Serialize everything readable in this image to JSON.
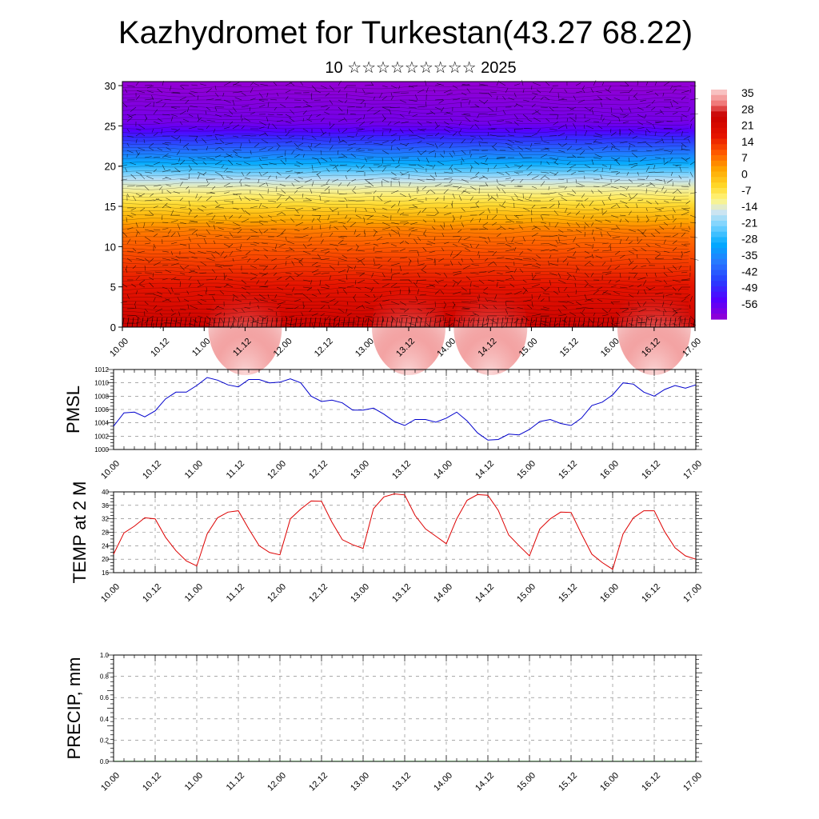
{
  "title": "Kazhydromet for Turkestan(43.27 68.22)",
  "subtitle": "10 ☆☆☆☆☆☆☆☆☆ 2025",
  "time_labels": [
    "10.00",
    "10.12",
    "11.00",
    "11.12",
    "12.00",
    "12.12",
    "13.00",
    "13.12",
    "14.00",
    "14.12",
    "15.00",
    "15.12",
    "16.00",
    "16.12",
    "17.00"
  ],
  "colors": {
    "pmsl_line": "#0000cc",
    "temp_line": "#dd0000",
    "grid": "#888888"
  },
  "chart_data": [
    {
      "type": "heatmap",
      "name": "vertical-cross-section",
      "x_ticks": [
        "10.00",
        "10.12",
        "11.00",
        "11.12",
        "12.00",
        "12.12",
        "13.00",
        "13.12",
        "14.00",
        "14.12",
        "15.00",
        "15.12",
        "16.00",
        "16.12",
        "17.00"
      ],
      "y_ticks": [
        "0",
        "5",
        "10",
        "15",
        "20",
        "25",
        "30"
      ],
      "ylim": [
        0,
        30.5
      ],
      "colorbar_labels": [
        "35",
        "28",
        "21",
        "14",
        "7",
        "0",
        "-7",
        "-14",
        "-21",
        "-28",
        "-35",
        "-42",
        "-49",
        "-56"
      ],
      "colorbar_range": [
        -60,
        38
      ],
      "warm_cores_day_index": [
        1.5,
        3.5,
        4.5,
        6.5
      ],
      "wind_barbs": true
    },
    {
      "type": "line",
      "name": "PMSL",
      "ylabel": "PMSL",
      "ylim": [
        1000,
        1012
      ],
      "y_ticks": [
        "1012",
        "1010",
        "1008",
        "1006",
        "1004",
        "1002",
        "1000"
      ],
      "x_ticks": [
        "10.00",
        "10.12",
        "11.00",
        "11.12",
        "12.00",
        "12.12",
        "13.00",
        "13.12",
        "14.00",
        "14.12",
        "15.00",
        "15.12",
        "16.00",
        "16.12",
        "17.00"
      ],
      "x_hours": [
        0,
        3,
        6,
        9,
        12,
        15,
        18,
        21,
        24,
        27,
        30,
        33,
        36,
        39,
        42,
        45,
        48,
        51,
        54,
        57,
        60,
        63,
        66,
        69,
        72,
        75,
        78,
        81,
        84,
        87,
        90,
        93,
        96,
        99,
        102,
        105,
        108,
        111,
        114,
        117,
        120,
        123,
        126,
        129,
        132,
        135,
        138,
        141,
        144,
        147,
        150,
        153,
        156,
        159,
        162,
        165,
        168
      ],
      "values": [
        1003.5,
        1005.5,
        1005.6,
        1004.9,
        1005.8,
        1007.6,
        1008.6,
        1008.6,
        1009.6,
        1010.8,
        1010.4,
        1009.7,
        1009.4,
        1010.5,
        1010.5,
        1010.0,
        1010.1,
        1010.6,
        1010.0,
        1008.0,
        1007.2,
        1007.4,
        1007.0,
        1005.9,
        1005.9,
        1006.2,
        1005.3,
        1004.2,
        1003.6,
        1004.5,
        1004.5,
        1004.1,
        1004.7,
        1005.6,
        1004.3,
        1002.5,
        1001.4,
        1001.5,
        1002.3,
        1002.2,
        1003.0,
        1004.2,
        1004.5,
        1003.9,
        1003.6,
        1004.7,
        1006.6,
        1007.1,
        1008.2,
        1010.0,
        1009.8,
        1008.6,
        1008.0,
        1009.0,
        1009.6,
        1009.2,
        1009.7
      ]
    },
    {
      "type": "line",
      "name": "TEMP at 2 M",
      "ylabel": "TEMP at 2 M",
      "ylim": [
        16,
        40
      ],
      "y_ticks": [
        "40",
        "36",
        "32",
        "28",
        "24",
        "20",
        "16"
      ],
      "x_ticks": [
        "10.00",
        "10.12",
        "11.00",
        "11.12",
        "12.00",
        "12.12",
        "13.00",
        "13.12",
        "14.00",
        "14.12",
        "15.00",
        "15.12",
        "16.00",
        "16.12",
        "17.00"
      ],
      "x_hours": [
        0,
        3,
        6,
        9,
        12,
        15,
        18,
        21,
        24,
        27,
        30,
        33,
        36,
        39,
        42,
        45,
        48,
        51,
        54,
        57,
        60,
        63,
        66,
        69,
        72,
        75,
        78,
        81,
        84,
        87,
        90,
        93,
        96,
        99,
        102,
        105,
        108,
        111,
        114,
        117,
        120,
        123,
        126,
        129,
        132,
        135,
        138,
        141,
        144,
        147,
        150,
        153,
        156,
        159,
        162,
        165,
        168
      ],
      "values": [
        21.5,
        27.8,
        29.8,
        32.3,
        32.0,
        26.5,
        22.5,
        19.5,
        18.0,
        27.5,
        32.3,
        34.0,
        34.4,
        29.0,
        24.0,
        22.0,
        21.3,
        32.0,
        34.9,
        37.3,
        37.2,
        31.0,
        25.8,
        24.3,
        23.2,
        35.0,
        38.5,
        39.4,
        39.1,
        33.0,
        29.0,
        26.8,
        24.6,
        32.0,
        37.5,
        39.2,
        39.0,
        34.5,
        27.2,
        24.0,
        21.0,
        29.0,
        32.0,
        34.0,
        33.9,
        27.5,
        21.5,
        19.0,
        17.0,
        27.5,
        32.3,
        34.4,
        34.4,
        28.2,
        23.4,
        21.0,
        20.0
      ]
    },
    {
      "type": "bar",
      "name": "PRECIP",
      "ylabel": "PRECIP, mm",
      "ylim": [
        0,
        1.0
      ],
      "y_ticks": [
        "1.0",
        "0.8",
        "0.6",
        "0.4",
        "0.2",
        "0.0"
      ],
      "x_ticks": [
        "10.00",
        "10.12",
        "11.00",
        "11.12",
        "12.00",
        "12.12",
        "13.00",
        "13.12",
        "14.00",
        "14.12",
        "15.00",
        "15.12",
        "16.00",
        "16.12",
        "17.00"
      ],
      "values": [
        0,
        0,
        0,
        0,
        0,
        0,
        0,
        0,
        0,
        0,
        0,
        0,
        0,
        0,
        0,
        0,
        0,
        0,
        0,
        0,
        0,
        0,
        0,
        0,
        0,
        0,
        0,
        0,
        0,
        0,
        0,
        0,
        0,
        0,
        0,
        0,
        0,
        0,
        0,
        0,
        0,
        0,
        0,
        0,
        0,
        0,
        0,
        0,
        0,
        0,
        0,
        0,
        0,
        0,
        0,
        0
      ]
    }
  ]
}
